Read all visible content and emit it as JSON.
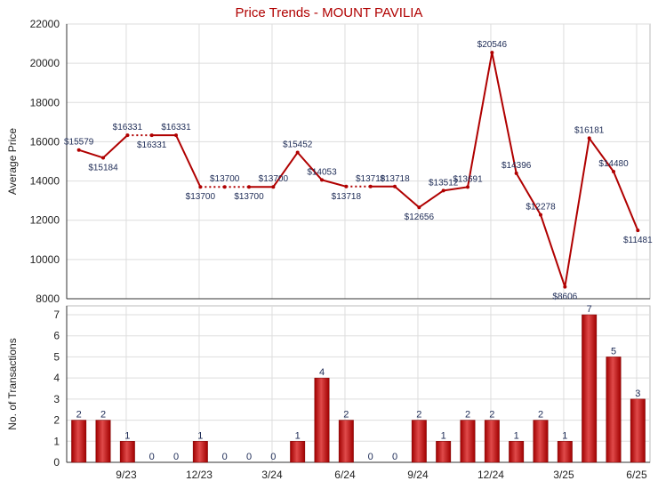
{
  "title": "Price Trends - MOUNT PAVILIA",
  "colors": {
    "line": "#b00000",
    "bar_dark": "#a00000",
    "bar_light": "#e04a4a",
    "grid": "#dddddd"
  },
  "chart_data": [
    {
      "type": "line",
      "title": "Price Trends - MOUNT PAVILIA",
      "ylabel": "Average Price",
      "ylim": [
        8000,
        22000
      ],
      "yticks": [
        8000,
        10000,
        12000,
        14000,
        16000,
        18000,
        20000,
        22000
      ],
      "x_tick_labels": [
        "9/23",
        "12/23",
        "3/24",
        "6/24",
        "9/24",
        "12/24",
        "3/25",
        "6/25"
      ],
      "grid": true,
      "values": [
        15579,
        15184,
        16331,
        16331,
        16331,
        13700,
        13700,
        13700,
        13700,
        15452,
        14053,
        13718,
        13718,
        13718,
        12656,
        13512,
        13691,
        20546,
        14396,
        12278,
        8606,
        16181,
        14480,
        11481
      ],
      "labels": [
        "$15579",
        "$15184",
        "$16331",
        "$16331",
        "$16331",
        "$13700",
        "$13700",
        "$13700",
        "$13700",
        "$15452",
        "$14053",
        "$13718",
        "$13718",
        "$13718",
        "$12656",
        "$13512",
        "$13691",
        "$20546",
        "$14396",
        "$12278",
        "$8606",
        "$16181",
        "$14480",
        "$11481"
      ],
      "carried_forward": [
        false,
        false,
        false,
        true,
        false,
        false,
        true,
        true,
        false,
        false,
        false,
        false,
        true,
        false,
        false,
        false,
        false,
        false,
        false,
        false,
        false,
        false,
        false,
        false
      ]
    },
    {
      "type": "bar",
      "ylabel": "No. of Transactions",
      "ylim": [
        0,
        7
      ],
      "yticks": [
        0,
        1,
        2,
        3,
        4,
        5,
        6,
        7
      ],
      "x_tick_labels": [
        "9/23",
        "12/23",
        "3/24",
        "6/24",
        "9/24",
        "12/24",
        "3/25",
        "6/25"
      ],
      "grid": true,
      "values": [
        2,
        2,
        1,
        0,
        0,
        1,
        0,
        0,
        0,
        1,
        4,
        2,
        0,
        0,
        2,
        1,
        2,
        2,
        1,
        2,
        1,
        7,
        5,
        3
      ]
    }
  ]
}
